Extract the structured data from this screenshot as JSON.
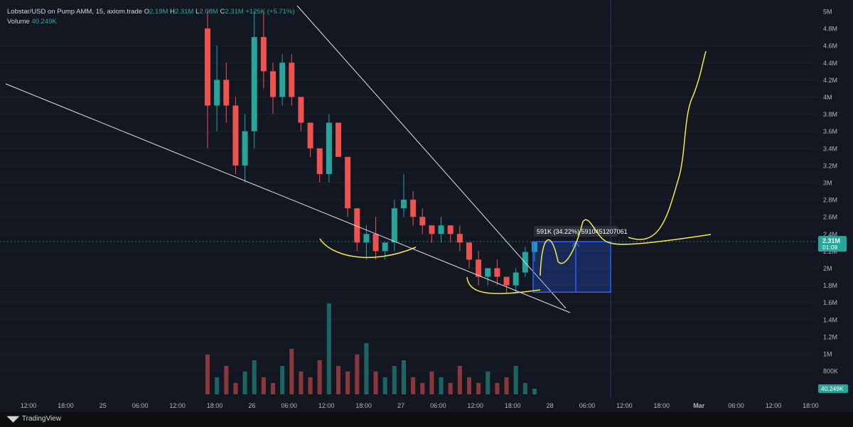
{
  "legend": {
    "symbol": "Lobstar/USD on Pump AMM, 15, axiom.trade",
    "o_label": "O",
    "o_value": "2.19M",
    "h_label": "H",
    "h_value": "2.31M",
    "l_label": "L",
    "l_value": "2.08M",
    "c_label": "C",
    "c_value": "2.31M",
    "change": "+125K (+5.71%)",
    "volume_label": "Volume",
    "volume_value": "40.249K"
  },
  "brand": {
    "name": "TradingView",
    "logo_icon": "tradingview-logo-icon"
  },
  "colors": {
    "background": "#131722",
    "up": "#26a69a",
    "down": "#ef5350",
    "annotation": "#f5e84a",
    "measure": "#2962ff"
  },
  "chart_data": {
    "type": "candlestick",
    "series": [
      {
        "name": "Lobstar/USD",
        "ohlc_sample": [
          [
            4.8,
            5.0,
            3.4,
            3.9
          ],
          [
            3.9,
            4.6,
            3.6,
            4.2
          ],
          [
            4.2,
            4.4,
            3.7,
            3.9
          ],
          [
            3.9,
            4.0,
            3.1,
            3.2
          ],
          [
            3.2,
            3.8,
            3.0,
            3.6
          ],
          [
            3.6,
            5.0,
            3.4,
            4.7
          ],
          [
            4.7,
            5.0,
            4.1,
            4.3
          ],
          [
            4.3,
            4.4,
            3.8,
            4.0
          ],
          [
            4.0,
            4.5,
            3.9,
            4.4
          ],
          [
            4.4,
            4.5,
            3.9,
            4.0
          ],
          [
            4.0,
            4.0,
            3.6,
            3.7
          ],
          [
            3.7,
            3.7,
            3.3,
            3.4
          ],
          [
            3.4,
            3.4,
            3.0,
            3.1
          ],
          [
            3.1,
            3.8,
            3.0,
            3.7
          ],
          [
            3.7,
            3.7,
            3.3,
            3.3
          ],
          [
            3.3,
            3.3,
            2.6,
            2.7
          ],
          [
            2.7,
            2.7,
            2.2,
            2.3
          ],
          [
            2.3,
            2.5,
            2.1,
            2.4
          ],
          [
            2.4,
            2.6,
            2.1,
            2.2
          ],
          [
            2.2,
            2.3,
            2.1,
            2.3
          ],
          [
            2.3,
            2.8,
            2.2,
            2.7
          ],
          [
            2.7,
            3.1,
            2.6,
            2.8
          ],
          [
            2.8,
            2.9,
            2.5,
            2.6
          ],
          [
            2.6,
            2.7,
            2.4,
            2.5
          ],
          [
            2.5,
            2.5,
            2.3,
            2.4
          ],
          [
            2.4,
            2.6,
            2.3,
            2.5
          ],
          [
            2.5,
            2.5,
            2.3,
            2.4
          ],
          [
            2.4,
            2.5,
            2.2,
            2.3
          ],
          [
            2.3,
            2.3,
            2.0,
            2.1
          ],
          [
            2.1,
            2.2,
            1.8,
            1.9
          ],
          [
            1.9,
            2.0,
            1.8,
            2.0
          ],
          [
            2.0,
            2.1,
            1.8,
            1.9
          ],
          [
            1.9,
            1.9,
            1.7,
            1.8
          ],
          [
            1.8,
            2.0,
            1.7,
            1.95
          ],
          [
            1.95,
            2.25,
            1.9,
            2.19
          ],
          [
            2.19,
            2.31,
            2.08,
            2.31
          ]
        ]
      }
    ],
    "x_tick_labels": [
      "12:00",
      "18:00",
      "25",
      "06:00",
      "12:00",
      "18:00",
      "26",
      "06:00",
      "12:00",
      "18:00",
      "27",
      "06:00",
      "12:00",
      "18:00",
      "28",
      "06:00",
      "12:00",
      "18:00",
      "Mar",
      "06:00",
      "12:00",
      "18:00"
    ],
    "y_tick_labels": [
      "5M",
      "4.8M",
      "4.6M",
      "4.4M",
      "4.2M",
      "4M",
      "3.8M",
      "3.6M",
      "3.4M",
      "3.2M",
      "3M",
      "2.8M",
      "2.6M",
      "2.4M",
      "2.2M",
      "2M",
      "1.8M",
      "1.6M",
      "1.4M",
      "1.2M",
      "1M",
      "800K"
    ],
    "ylim": [
      0.65,
      5.05
    ],
    "last_price_label": "2.31M",
    "countdown_label": "01:09",
    "volume_axis_label": "40.249K",
    "measure_label": "591K (34.22%) 5910451207061",
    "volume_sample": [
      0.7,
      0.3,
      0.5,
      0.2,
      0.4,
      0.6,
      0.3,
      0.2,
      0.5,
      0.8,
      0.4,
      0.3,
      0.6,
      1.6,
      0.5,
      0.4,
      0.7,
      0.9,
      0.4,
      0.3,
      0.5,
      0.6,
      0.3,
      0.2,
      0.4,
      0.3,
      0.2,
      0.5,
      0.3,
      0.2,
      0.4,
      0.2,
      0.3,
      0.5,
      0.2,
      0.1
    ]
  }
}
